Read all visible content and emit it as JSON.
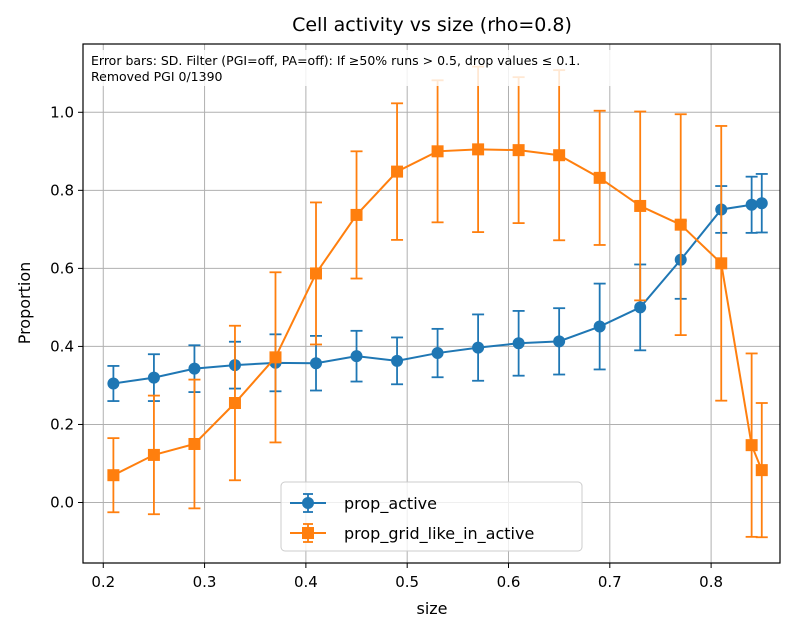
{
  "chart_data": {
    "type": "line",
    "title": "Cell activity vs size (rho=0.8)",
    "xlabel": "size",
    "ylabel": "Proportion",
    "xlim": [
      0.18,
      0.868
    ],
    "ylim": [
      -0.155,
      1.175
    ],
    "xticks": [
      0.2,
      0.3,
      0.4,
      0.5,
      0.6,
      0.7,
      0.8
    ],
    "xtick_labels": [
      "0.2",
      "0.3",
      "0.4",
      "0.5",
      "0.6",
      "0.7",
      "0.8"
    ],
    "yticks": [
      0.0,
      0.2,
      0.4,
      0.6,
      0.8,
      1.0
    ],
    "ytick_labels": [
      "0.0",
      "0.2",
      "0.4",
      "0.6",
      "0.8",
      "1.0"
    ],
    "grid": true,
    "legend_position": "bottom-center",
    "annotation_lines": [
      "Error bars: SD. Filter (PGI=off, PA=off): If ≥50% runs > 0.5, drop values ≤ 0.1.",
      "Removed PGI 0/1390"
    ],
    "series": [
      {
        "name": "prop_active",
        "color": "#1f77b4",
        "marker": "circle",
        "x": [
          0.21,
          0.25,
          0.29,
          0.33,
          0.37,
          0.41,
          0.45,
          0.49,
          0.53,
          0.57,
          0.61,
          0.65,
          0.69,
          0.73,
          0.77,
          0.81,
          0.84,
          0.85
        ],
        "y": [
          0.305,
          0.32,
          0.343,
          0.352,
          0.358,
          0.357,
          0.375,
          0.363,
          0.383,
          0.397,
          0.408,
          0.413,
          0.451,
          0.5,
          0.622,
          0.751,
          0.763,
          0.767
        ],
        "err": [
          0.045,
          0.06,
          0.06,
          0.06,
          0.073,
          0.07,
          0.065,
          0.06,
          0.062,
          0.085,
          0.083,
          0.085,
          0.11,
          0.11,
          0.1,
          0.06,
          0.072,
          0.075
        ]
      },
      {
        "name": "prop_grid_like_in_active",
        "color": "#ff7f0e",
        "marker": "square",
        "x": [
          0.21,
          0.25,
          0.29,
          0.33,
          0.37,
          0.41,
          0.45,
          0.49,
          0.53,
          0.57,
          0.61,
          0.65,
          0.69,
          0.73,
          0.77,
          0.81,
          0.84,
          0.85
        ],
        "y": [
          0.07,
          0.122,
          0.15,
          0.255,
          0.372,
          0.587,
          0.737,
          0.848,
          0.9,
          0.905,
          0.903,
          0.89,
          0.832,
          0.76,
          0.712,
          0.613,
          0.147,
          0.083
        ],
        "err": [
          0.095,
          0.152,
          0.165,
          0.198,
          0.218,
          0.182,
          0.163,
          0.175,
          0.182,
          0.212,
          0.187,
          0.218,
          0.172,
          0.242,
          0.283,
          0.352,
          0.235,
          0.172
        ]
      }
    ]
  }
}
